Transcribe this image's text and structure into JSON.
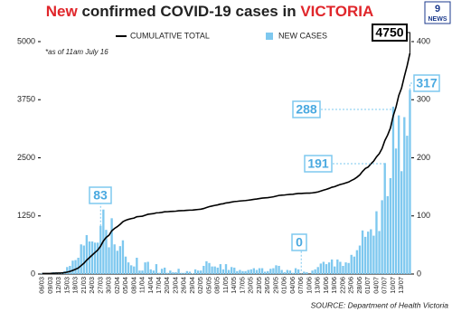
{
  "chart_data": {
    "type": "bar",
    "title": [
      "New",
      "confirmed COVID-19 cases in",
      "VICTORIA"
    ],
    "note": "*as of 11am July 16",
    "source": "SOURCE: Department of Health Victoria",
    "logo_number": "9",
    "logo_text": "NEWS",
    "categories": [
      "06/03",
      null,
      null,
      "09/03",
      null,
      null,
      "12/03",
      null,
      null,
      "15/03",
      null,
      null,
      "18/03",
      null,
      null,
      "21/03",
      null,
      null,
      "24/03",
      null,
      null,
      "27/03",
      null,
      null,
      "30/03",
      null,
      null,
      "02/04",
      null,
      null,
      "05/04",
      null,
      null,
      "08/04",
      null,
      null,
      "11/04",
      null,
      null,
      "14/04",
      null,
      null,
      "17/04",
      null,
      null,
      "20/04",
      null,
      null,
      "23/04",
      null,
      null,
      "26/04",
      null,
      null,
      "29/04",
      null,
      null,
      "02/05",
      null,
      null,
      "05/05",
      null,
      null,
      "08/05",
      null,
      null,
      "11/05",
      null,
      null,
      "14/05",
      null,
      null,
      "17/05",
      null,
      null,
      "20/05",
      null,
      null,
      "23/05",
      null,
      null,
      "26/05",
      null,
      null,
      "29/05",
      null,
      null,
      "01/06",
      null,
      null,
      "04/06",
      null,
      null,
      "07/06",
      null,
      null,
      "10/06",
      null,
      null,
      "13/06",
      null,
      null,
      "16/06",
      null,
      null,
      "19/06",
      null,
      null,
      "22/06",
      null,
      null,
      "25/06",
      null,
      null,
      "28/06",
      null,
      null,
      "01/07",
      null,
      null,
      "04/07",
      null,
      null,
      "07/07",
      null,
      null,
      "10/07",
      null,
      null,
      "13/07",
      null,
      null,
      null
    ],
    "series": [
      {
        "name": "CUMULATIVE TOTAL",
        "type": "line",
        "color": "#000000",
        "values": [
          11,
          12,
          12,
          13,
          16,
          19,
          21,
          24,
          29,
          41,
          55,
          78,
          102,
          130,
          181,
          230,
          297,
          353,
          409,
          463,
          517,
          600,
          711,
          787,
          833,
          929,
          980,
          1020,
          1068,
          1126,
          1156,
          1176,
          1191,
          1204,
          1232,
          1238,
          1244,
          1264,
          1285,
          1293,
          1299,
          1316,
          1318,
          1327,
          1338,
          1340,
          1346,
          1349,
          1352,
          1361,
          1363,
          1365,
          1370,
          1374,
          1375,
          1383,
          1389,
          1395,
          1409,
          1431,
          1450,
          1463,
          1476,
          1487,
          1504,
          1512,
          1529,
          1536,
          1548,
          1559,
          1564,
          1571,
          1576,
          1581,
          1588,
          1596,
          1606,
          1613,
          1623,
          1633,
          1637,
          1642,
          1651,
          1661,
          1676,
          1690,
          1697,
          1700,
          1707,
          1713,
          1715,
          1725,
          1733,
          1733,
          1737,
          1740,
          1740,
          1746,
          1754,
          1766,
          1784,
          1805,
          1822,
          1842,
          1867,
          1880,
          1905,
          1926,
          1940,
          1960,
          1979,
          2012,
          2042,
          2083,
          2132,
          2207,
          2271,
          2300,
          2370,
          2430,
          2520,
          2590,
          2700,
          2870,
          2990,
          3140,
          3400,
          3590,
          3840,
          4000,
          4250,
          4480,
          4750
        ]
      },
      {
        "name": "NEW CASES",
        "type": "bar",
        "axis": "y2",
        "color": "#7ec8ef",
        "values": [
          1,
          1,
          0,
          1,
          3,
          3,
          2,
          3,
          5,
          12,
          14,
          23,
          24,
          28,
          51,
          49,
          67,
          56,
          56,
          54,
          54,
          83,
          111,
          76,
          46,
          96,
          51,
          40,
          48,
          58,
          30,
          20,
          15,
          13,
          28,
          6,
          6,
          20,
          21,
          8,
          6,
          17,
          2,
          9,
          11,
          2,
          6,
          3,
          3,
          9,
          2,
          2,
          5,
          4,
          1,
          8,
          6,
          6,
          14,
          22,
          19,
          13,
          13,
          11,
          17,
          8,
          17,
          7,
          12,
          11,
          5,
          7,
          5,
          5,
          7,
          8,
          10,
          7,
          10,
          10,
          4,
          5,
          9,
          10,
          15,
          14,
          7,
          3,
          7,
          6,
          2,
          10,
          8,
          0,
          4,
          3,
          0,
          6,
          8,
          12,
          18,
          21,
          17,
          20,
          25,
          13,
          25,
          21,
          14,
          20,
          19,
          33,
          30,
          41,
          49,
          75,
          64,
          73,
          77,
          66,
          108,
          74,
          127,
          191,
          134,
          165,
          288,
          216,
          273,
          177,
          270,
          238,
          317
        ]
      }
    ],
    "ylim": [
      0,
      5000
    ],
    "yticks": [
      0,
      1250,
      2500,
      3750,
      5000
    ],
    "y2lim": [
      0,
      400
    ],
    "y2ticks": [
      0,
      100,
      200,
      300,
      400
    ]
  }
}
